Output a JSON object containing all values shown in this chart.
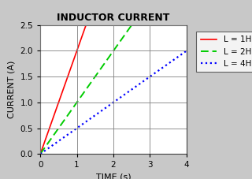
{
  "title": "INDUCTOR CURRENT",
  "xlabel": "TIME (s)",
  "ylabel": "CURRENT (A)",
  "xlim": [
    0,
    4
  ],
  "ylim": [
    0,
    2.5
  ],
  "xticks": [
    0,
    1,
    2,
    3,
    4
  ],
  "yticks": [
    0.0,
    0.5,
    1.0,
    1.5,
    2.0,
    2.5
  ],
  "lines": [
    {
      "label": "L = 1H",
      "slope": 2.0,
      "color": "#ff0000",
      "linestyle": "solid",
      "linewidth": 1.2
    },
    {
      "label": "L = 2H",
      "slope": 1.0,
      "color": "#00cc00",
      "linestyle": "dashed",
      "linewidth": 1.4
    },
    {
      "label": "L = 4H",
      "slope": 0.5,
      "color": "#0000ff",
      "linestyle": "dotted",
      "linewidth": 1.6
    }
  ],
  "grid_color": "#808080",
  "plot_bg": "#ffffff",
  "outer_bg": "#c8c8c8",
  "title_fontsize": 9,
  "axis_label_fontsize": 8,
  "tick_fontsize": 7.5,
  "legend_fontsize": 7.5
}
